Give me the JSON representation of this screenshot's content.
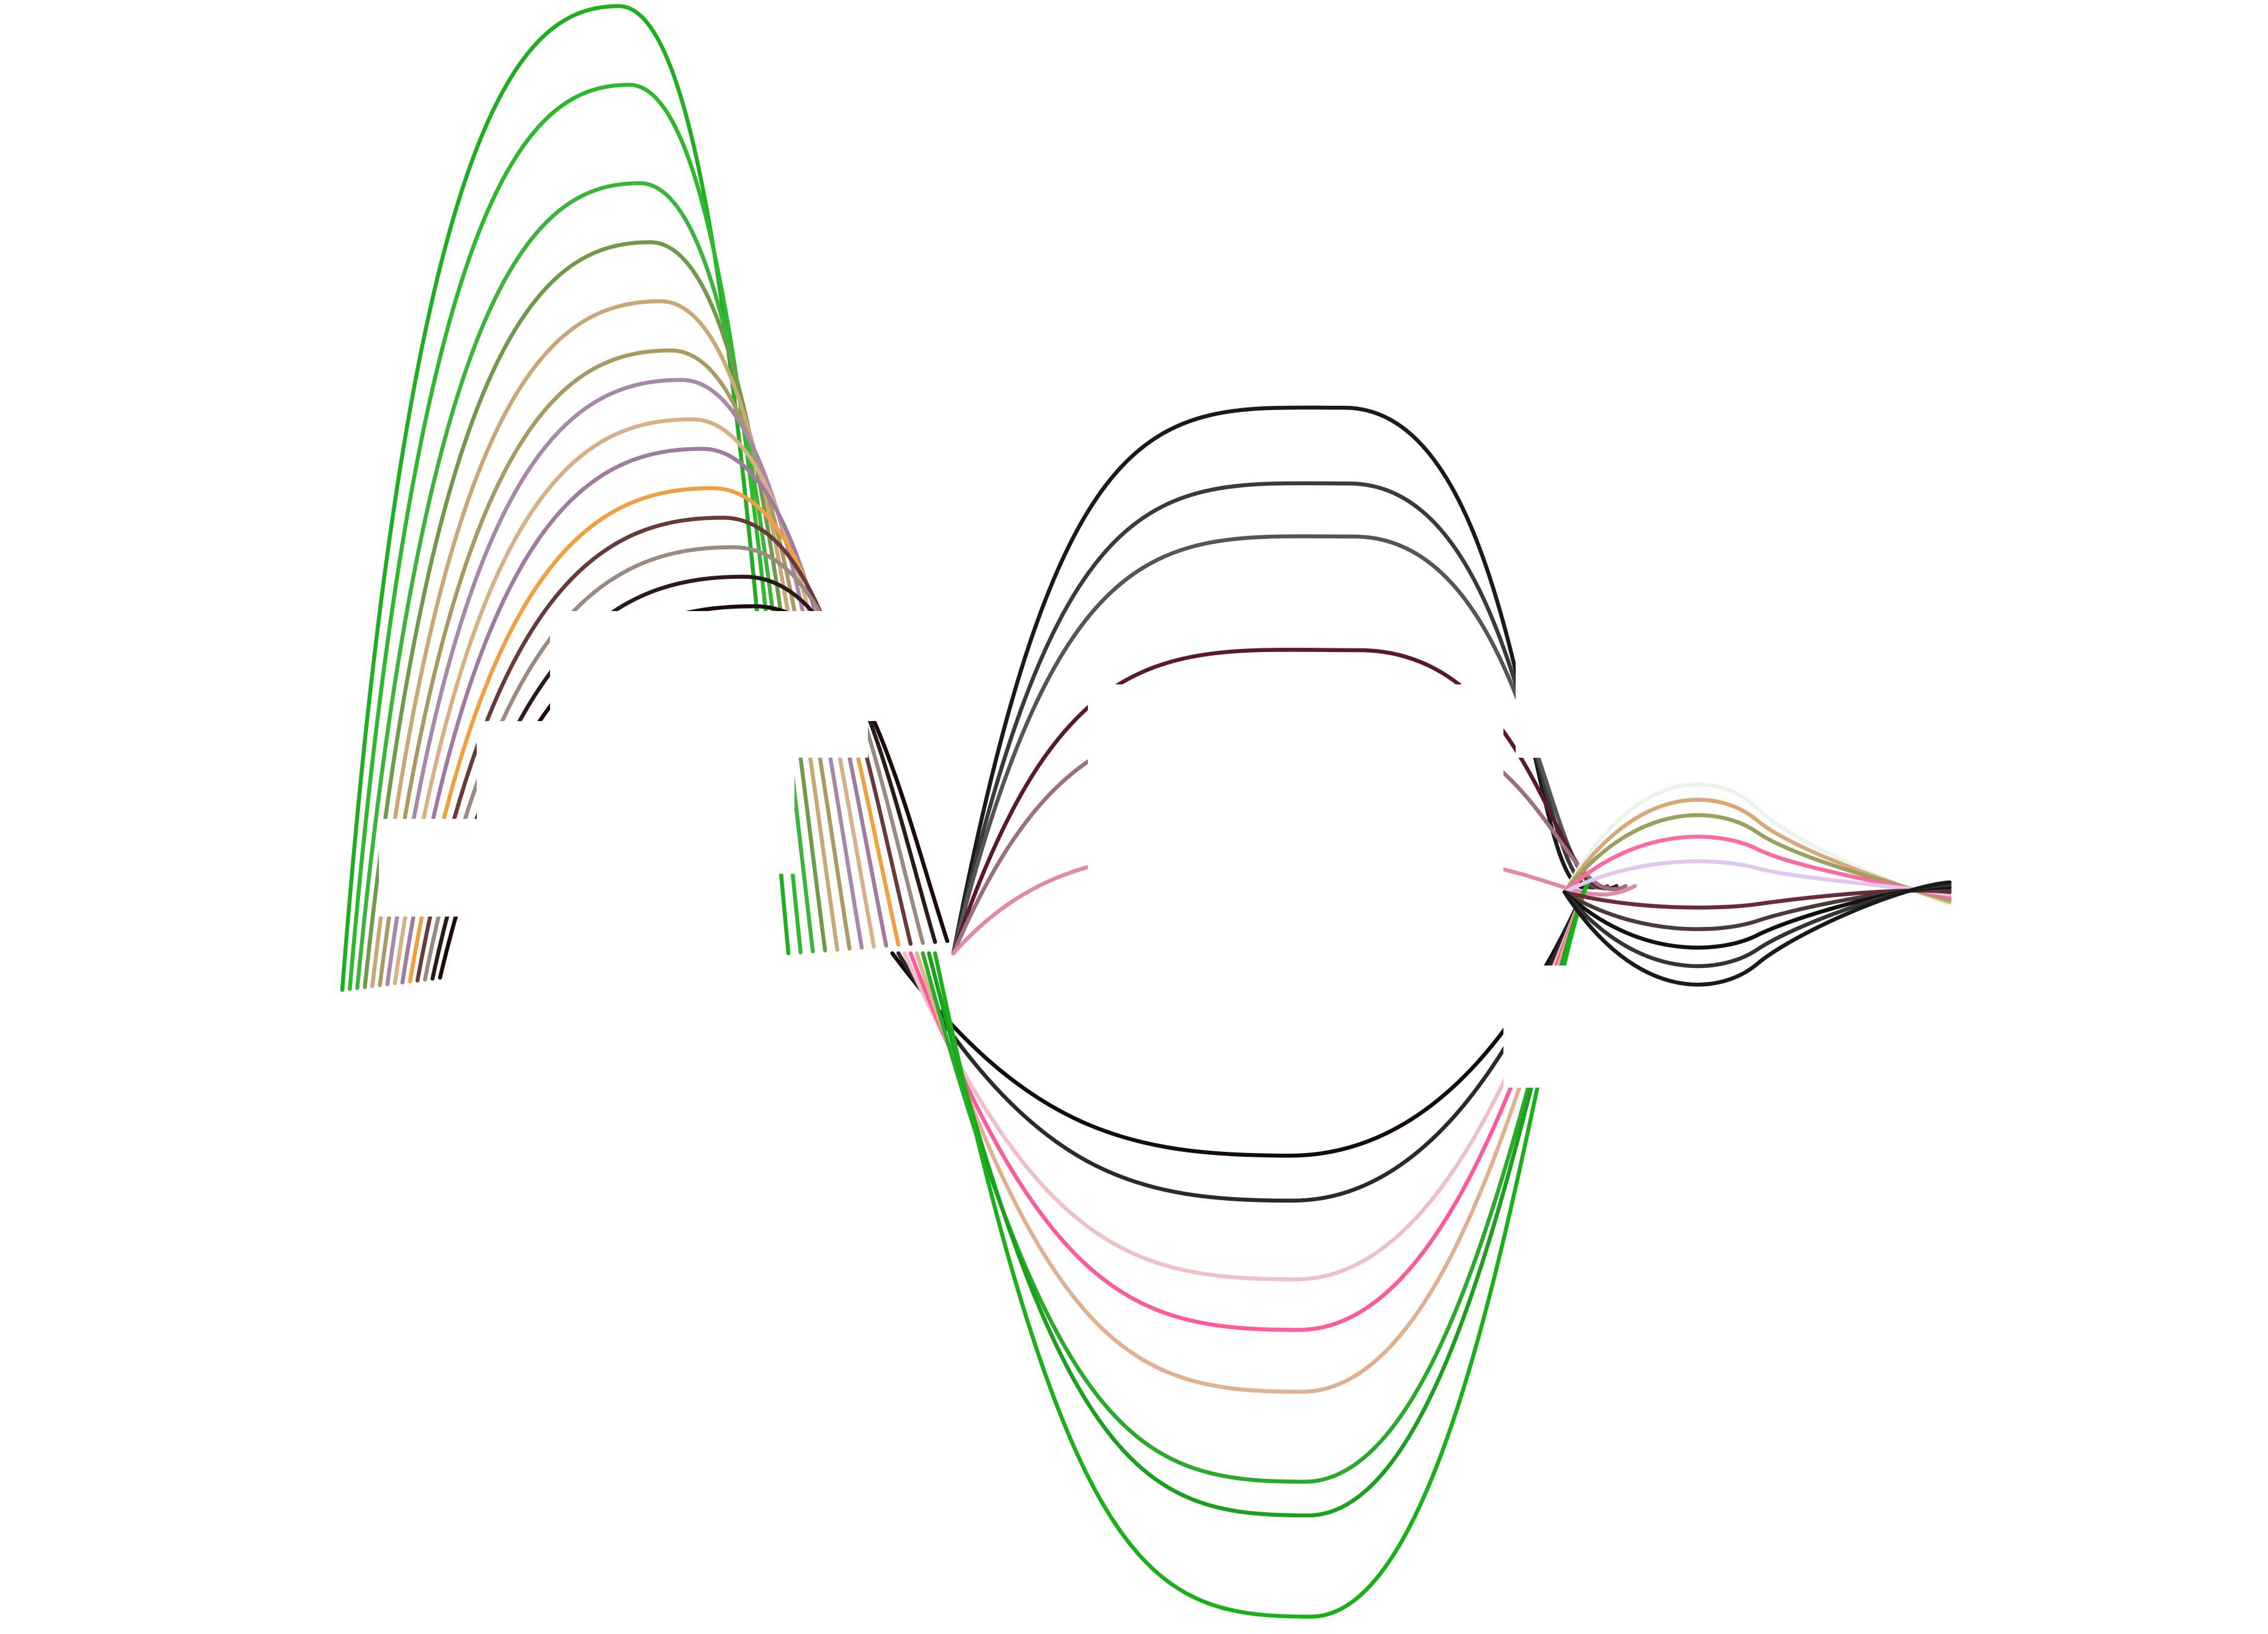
{
  "chart_data": {
    "type": "line",
    "title": "",
    "xlabel": "",
    "ylabel": "",
    "legend": "none",
    "axes_visible": false,
    "grid": false,
    "background": "#ffffff",
    "panels": [
      {
        "panel": "left",
        "description_shape": "upward arcs",
        "series": [
          {
            "color": "#1fae1f",
            "peak": 1.0
          },
          {
            "color": "#2db82d",
            "peak": 0.92
          },
          {
            "color": "#3cb43c",
            "peak": 0.82
          },
          {
            "color": "#6f9a4a",
            "peak": 0.76
          },
          {
            "color": "#c9a878",
            "peak": 0.7
          },
          {
            "color": "#a89a62",
            "peak": 0.65
          },
          {
            "color": "#a888a8",
            "peak": 0.62
          },
          {
            "color": "#d8b088",
            "peak": 0.58
          },
          {
            "color": "#a07aa0",
            "peak": 0.55
          },
          {
            "color": "#f0a040",
            "peak": 0.51
          },
          {
            "color": "#6a3a3a",
            "peak": 0.48
          },
          {
            "color": "#9a8a80",
            "peak": 0.45
          },
          {
            "color": "#2a1a1a",
            "peak": 0.42
          },
          {
            "color": "#1a0a0a",
            "peak": 0.39
          }
        ]
      },
      {
        "panel": "middle",
        "description_shape": "upper arcs and lower troughs",
        "upper_series": [
          {
            "color": "#1a1a1a",
            "peak": 0.72
          },
          {
            "color": "#3a3a3a",
            "peak": 0.62
          },
          {
            "color": "#555555",
            "peak": 0.55
          },
          {
            "color": "#5a1a2a",
            "peak": 0.4
          },
          {
            "color": "#9a7080",
            "peak": 0.31
          },
          {
            "color": "#e08aa8",
            "peak": 0.13
          }
        ],
        "lower_series": [
          {
            "color": "#150a10",
            "trough": -0.36
          },
          {
            "color": "#2a2a2a",
            "trough": -0.44
          },
          {
            "color": "#f0c0c8",
            "trough": -0.58
          },
          {
            "color": "#ff5a9a",
            "trough": -0.67
          },
          {
            "color": "#e0b090",
            "trough": -0.78
          },
          {
            "color": "#2aaa2a",
            "trough": -0.94
          },
          {
            "color": "#1aa01a",
            "trough": -1.0
          },
          {
            "color": "#1ab01a",
            "trough": -1.18
          }
        ]
      },
      {
        "panel": "right",
        "description_shape": "small waves",
        "series": [
          {
            "color": "#e8f5e8",
            "amp": 0.35
          },
          {
            "color": "#d8a878",
            "amp": 0.3
          },
          {
            "color": "#9aa060",
            "amp": 0.25
          },
          {
            "color": "#ff6aa0",
            "amp": 0.18
          },
          {
            "color": "#e0c8f0",
            "amp": 0.1
          },
          {
            "color": "#6a2a3a",
            "amp": -0.05
          },
          {
            "color": "#4a3a3a",
            "amp": -0.12
          },
          {
            "color": "#151010",
            "amp": -0.18
          },
          {
            "color": "#333333",
            "amp": -0.24
          },
          {
            "color": "#1a1a1a",
            "amp": -0.3
          }
        ]
      }
    ]
  }
}
